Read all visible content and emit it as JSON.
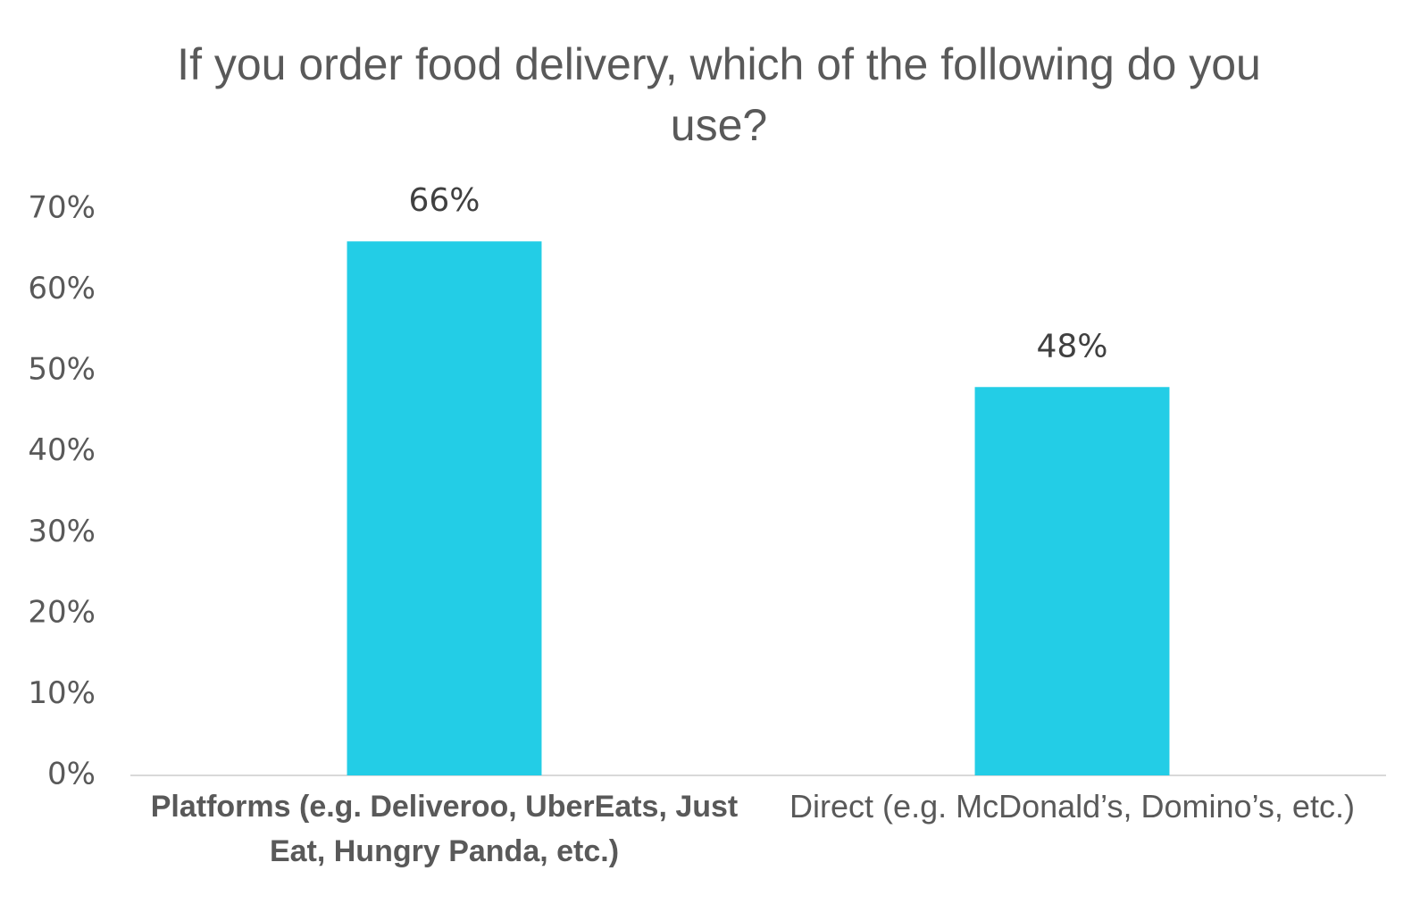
{
  "chart_data": {
    "type": "bar",
    "title": "If you order food delivery, which of the following do you use?",
    "categories": [
      "Platforms (e.g. Deliveroo, UberEats, Just Eat, Hungry Panda, etc.)",
      "Direct (e.g. McDonald’s, Domino’s, etc.)"
    ],
    "values": [
      66,
      48
    ],
    "value_labels": [
      "66%",
      "48%"
    ],
    "color": "#23cde6",
    "ylim": [
      0,
      70
    ],
    "yticks": [
      {
        "value": 0,
        "label": "0%"
      },
      {
        "value": 10,
        "label": "10%"
      },
      {
        "value": 20,
        "label": "20%"
      },
      {
        "value": 30,
        "label": "30%"
      },
      {
        "value": 40,
        "label": "40%"
      },
      {
        "value": 50,
        "label": "50%"
      },
      {
        "value": 60,
        "label": "60%"
      },
      {
        "value": 70,
        "label": "70%"
      }
    ],
    "grid": false
  }
}
